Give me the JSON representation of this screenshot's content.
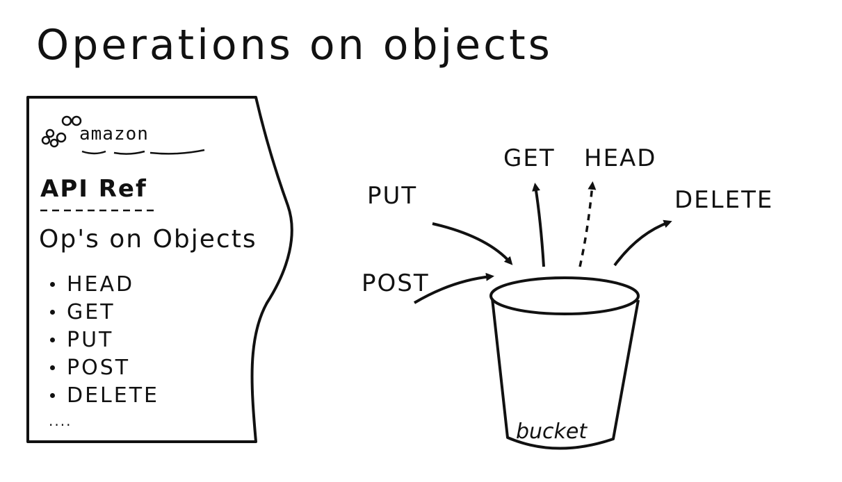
{
  "title": "Operations on objects",
  "doc_panel": {
    "logo_text": "amazon",
    "api_ref": "API Ref",
    "heading": "Op's on Objects",
    "operations": [
      "HEAD",
      "GET",
      "PUT",
      "POST",
      "DELETE"
    ],
    "more": "...."
  },
  "diagram": {
    "operations": {
      "put": "PUT",
      "post": "POST",
      "get": "GET",
      "head": "HEAD",
      "delete": "DELETE"
    },
    "bucket_label": "bucket"
  }
}
